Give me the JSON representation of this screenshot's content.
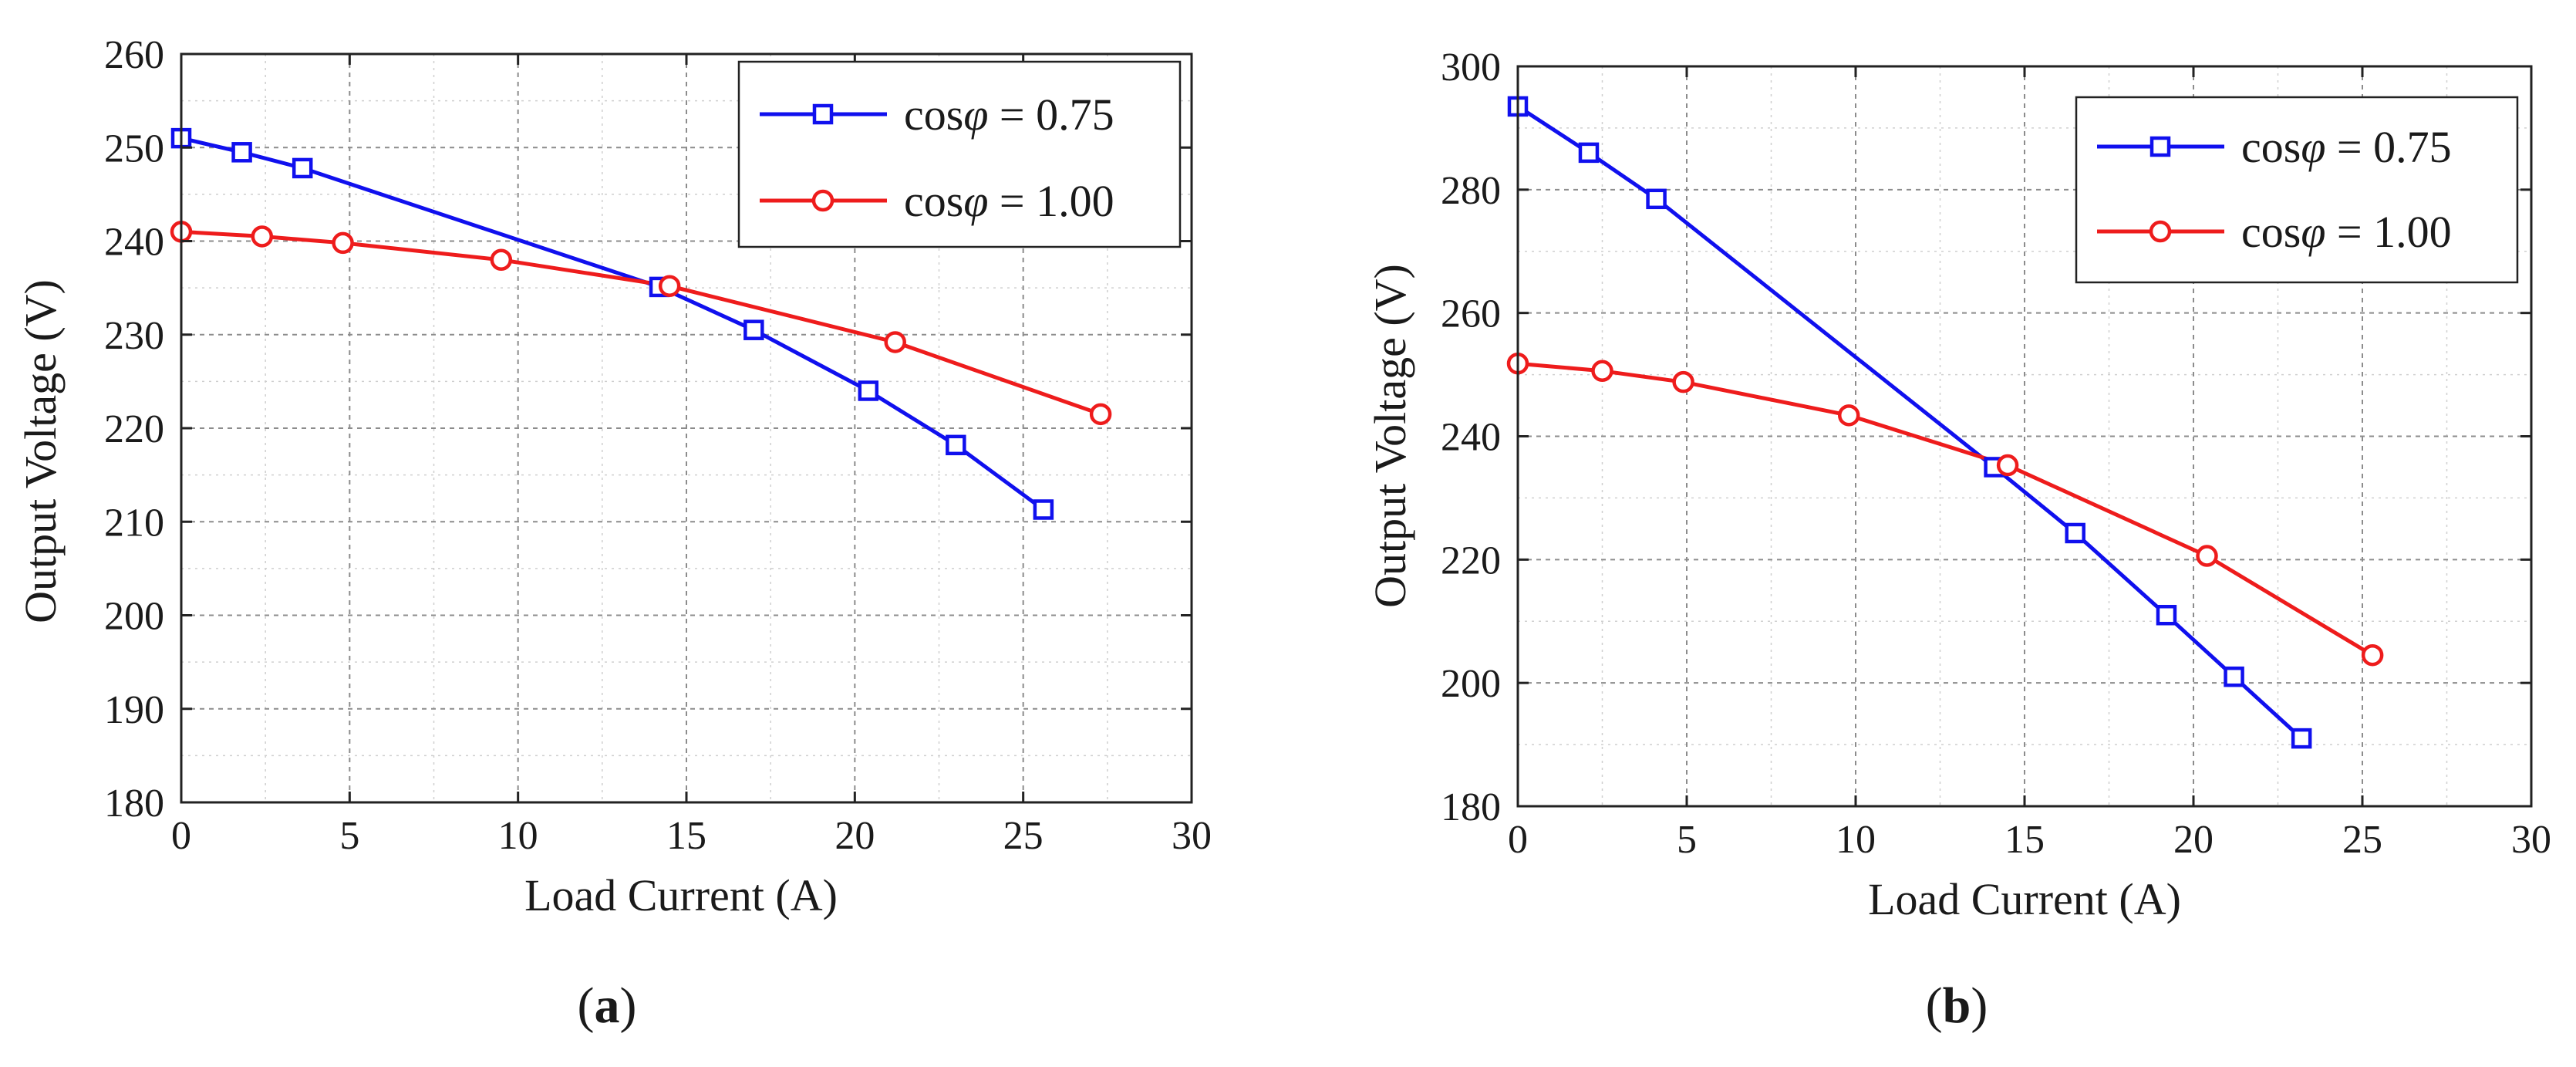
{
  "chart_data": [
    {
      "type": "line",
      "panel_label": "a",
      "xlabel": "Load Current (A)",
      "ylabel": "Output Voltage (V)",
      "xlim": [
        0,
        30
      ],
      "ylim": [
        180,
        260
      ],
      "xticks": [
        0,
        5,
        10,
        15,
        20,
        25,
        30
      ],
      "yticks": [
        180,
        190,
        200,
        210,
        220,
        230,
        240,
        250,
        260
      ],
      "grid": true,
      "legend_position": "top-right",
      "series": [
        {
          "name": "cosφ = 0.75",
          "legend_prefix": "cos",
          "legend_symbol": "φ",
          "legend_value": " = 0.75",
          "color": "#1010ee",
          "marker": "square",
          "x": [
            0,
            1.8,
            3.6,
            14.2,
            17.0,
            20.4,
            23.0,
            25.6
          ],
          "y": [
            251,
            249.5,
            247.8,
            235.1,
            230.5,
            224.0,
            218.2,
            211.3
          ]
        },
        {
          "name": "cosφ = 1.00",
          "legend_prefix": "cos",
          "legend_symbol": "φ",
          "legend_value": " = 1.00",
          "color": "#ee1c1c",
          "marker": "circle",
          "x": [
            0,
            2.4,
            4.8,
            9.5,
            14.5,
            21.2,
            27.3
          ],
          "y": [
            241.0,
            240.5,
            239.8,
            238.0,
            235.2,
            229.2,
            221.5
          ]
        }
      ]
    },
    {
      "type": "line",
      "panel_label": "b",
      "xlabel": "Load Current (A)",
      "ylabel": "Output Voltage (V)",
      "xlim": [
        0,
        30
      ],
      "ylim": [
        180,
        300
      ],
      "xticks": [
        0,
        5,
        10,
        15,
        20,
        25,
        30
      ],
      "yticks": [
        180,
        200,
        220,
        240,
        260,
        280,
        300
      ],
      "grid": true,
      "legend_position": "top-right",
      "series": [
        {
          "name": "cosφ = 0.75",
          "legend_prefix": "cos",
          "legend_symbol": "φ",
          "legend_value": " = 0.75",
          "color": "#1010ee",
          "marker": "square",
          "x": [
            0,
            2.1,
            4.1,
            14.1,
            16.5,
            19.2,
            21.2,
            23.2
          ],
          "y": [
            293.5,
            286.0,
            278.5,
            235.0,
            224.3,
            211.0,
            201.0,
            191.0
          ]
        },
        {
          "name": "cosφ = 1.00",
          "legend_prefix": "cos",
          "legend_symbol": "φ",
          "legend_value": " = 1.00",
          "color": "#ee1c1c",
          "marker": "circle",
          "x": [
            0,
            2.5,
            4.9,
            9.8,
            14.5,
            20.4,
            25.3
          ],
          "y": [
            251.8,
            250.6,
            248.8,
            243.4,
            235.3,
            220.6,
            204.5
          ]
        }
      ]
    }
  ]
}
